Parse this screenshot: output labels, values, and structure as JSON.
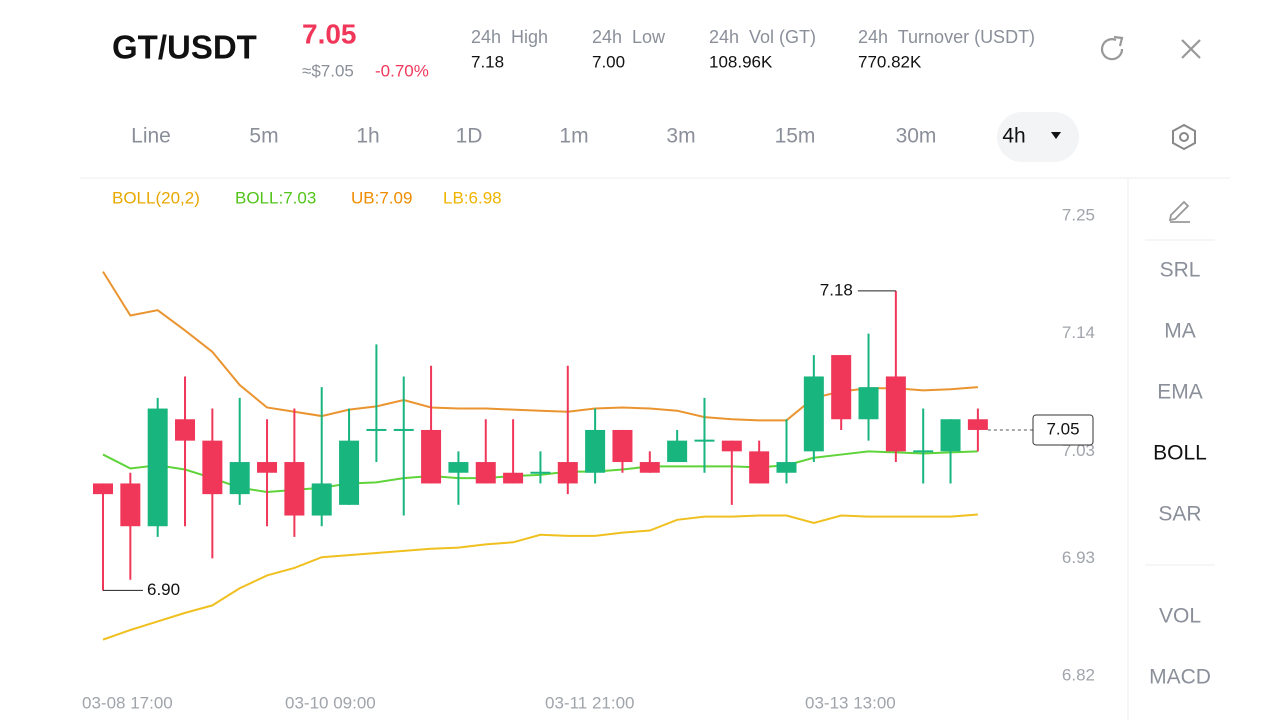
{
  "header": {
    "pair": "GT/USDT",
    "price": "7.05",
    "usd_price": "≈$7.05",
    "change": "-0.70%",
    "stats": [
      {
        "label": "24h  High",
        "value": "7.18"
      },
      {
        "label": "24h  Low",
        "value": "7.00"
      },
      {
        "label": "24h  Vol (GT)",
        "value": "108.96K"
      },
      {
        "label": "24h  Turnover (USDT)",
        "value": "770.82K"
      }
    ]
  },
  "timeframes": {
    "items": [
      "Line",
      "5m",
      "1h",
      "1D",
      "1m",
      "3m",
      "15m",
      "30m",
      "4h"
    ],
    "active": 8
  },
  "tools": {
    "items": [
      "SRL",
      "MA",
      "EMA",
      "BOLL",
      "SAR",
      "VOL",
      "MACD"
    ],
    "active": 3
  },
  "chart_data": {
    "type": "candlestick",
    "legend": [
      {
        "text": "BOLL(20,2)",
        "color": "#e8a800"
      },
      {
        "text": "BOLL:7.03",
        "color": "#52c41a"
      },
      {
        "text": "UB:7.09",
        "color": "#f08c00"
      },
      {
        "text": "LB:6.98",
        "color": "#f0b400"
      }
    ],
    "x_labels": [
      "03-08 17:00",
      "03-10 09:00",
      "03-11 21:00",
      "03-13 13:00"
    ],
    "ylim": [
      6.82,
      7.25
    ],
    "yticks": [
      7.25,
      7.14,
      7.03,
      6.93,
      6.82
    ],
    "rise_color": "#18b57f",
    "fall_color": "#f0375a",
    "open": [
      7.0,
      7.0,
      6.96,
      7.06,
      7.04,
      6.99,
      7.02,
      7.02,
      6.97,
      6.98,
      7.05,
      7.05,
      7.05,
      7.01,
      7.02,
      7.01,
      7.01,
      7.02,
      7.01,
      7.05,
      7.02,
      7.02,
      7.04,
      7.04,
      7.03,
      7.01,
      7.03,
      7.12,
      7.06,
      7.1,
      7.03,
      7.03,
      7.06
    ],
    "high": [
      7.0,
      7.01,
      7.08,
      7.1,
      7.07,
      7.08,
      7.06,
      7.07,
      7.09,
      7.07,
      7.13,
      7.1,
      7.11,
      7.03,
      7.06,
      7.06,
      7.03,
      7.11,
      7.07,
      7.05,
      7.03,
      7.05,
      7.08,
      7.04,
      7.04,
      7.06,
      7.12,
      7.12,
      7.14,
      7.18,
      7.07,
      7.06,
      7.07
    ],
    "low": [
      6.9,
      6.91,
      6.95,
      6.96,
      6.93,
      6.98,
      6.96,
      6.95,
      6.96,
      6.98,
      7.02,
      6.97,
      7.0,
      6.98,
      7.0,
      7.0,
      7.0,
      6.99,
      7.0,
      7.01,
      7.01,
      7.02,
      7.01,
      6.98,
      7.0,
      7.0,
      7.02,
      7.05,
      7.04,
      7.02,
      7.0,
      7.0,
      7.03
    ],
    "close": [
      6.99,
      6.96,
      7.07,
      7.04,
      6.99,
      7.02,
      7.01,
      6.97,
      7.0,
      7.04,
      7.05,
      7.05,
      7.0,
      7.02,
      7.0,
      7.0,
      7.01,
      7.0,
      7.05,
      7.02,
      7.01,
      7.04,
      7.04,
      7.03,
      7.0,
      7.02,
      7.1,
      7.06,
      7.09,
      7.03,
      7.03,
      7.06,
      7.05
    ],
    "series": [
      {
        "name": "UB",
        "color": "#ea9430",
        "values": [
          7.198,
          7.157,
          7.162,
          7.143,
          7.123,
          7.092,
          7.071,
          7.067,
          7.063,
          7.069,
          7.072,
          7.078,
          7.071,
          7.07,
          7.07,
          7.069,
          7.068,
          7.067,
          7.07,
          7.071,
          7.07,
          7.068,
          7.062,
          7.06,
          7.059,
          7.059,
          7.08,
          7.086,
          7.089,
          7.089,
          7.087,
          7.088,
          7.09
        ]
      },
      {
        "name": "BOLL",
        "color": "#5fd43a",
        "values": [
          7.027,
          7.014,
          7.017,
          7.013,
          7.005,
          6.996,
          6.992,
          6.994,
          6.996,
          7.0,
          7.001,
          7.005,
          7.007,
          7.005,
          7.005,
          7.007,
          7.008,
          7.011,
          7.011,
          7.013,
          7.016,
          7.016,
          7.016,
          7.016,
          7.015,
          7.017,
          7.024,
          7.027,
          7.03,
          7.029,
          7.028,
          7.029,
          7.03
        ]
      },
      {
        "name": "LB",
        "color": "#f0c020",
        "values": [
          6.854,
          6.863,
          6.871,
          6.879,
          6.886,
          6.902,
          6.914,
          6.921,
          6.931,
          6.933,
          6.935,
          6.937,
          6.939,
          6.94,
          6.943,
          6.945,
          6.952,
          6.951,
          6.951,
          6.954,
          6.956,
          6.966,
          6.969,
          6.969,
          6.97,
          6.97,
          6.963,
          6.97,
          6.969,
          6.969,
          6.969,
          6.969,
          6.971
        ]
      }
    ],
    "high_label": "7.18",
    "low_label": "6.90",
    "last_price_label": "7.05"
  }
}
